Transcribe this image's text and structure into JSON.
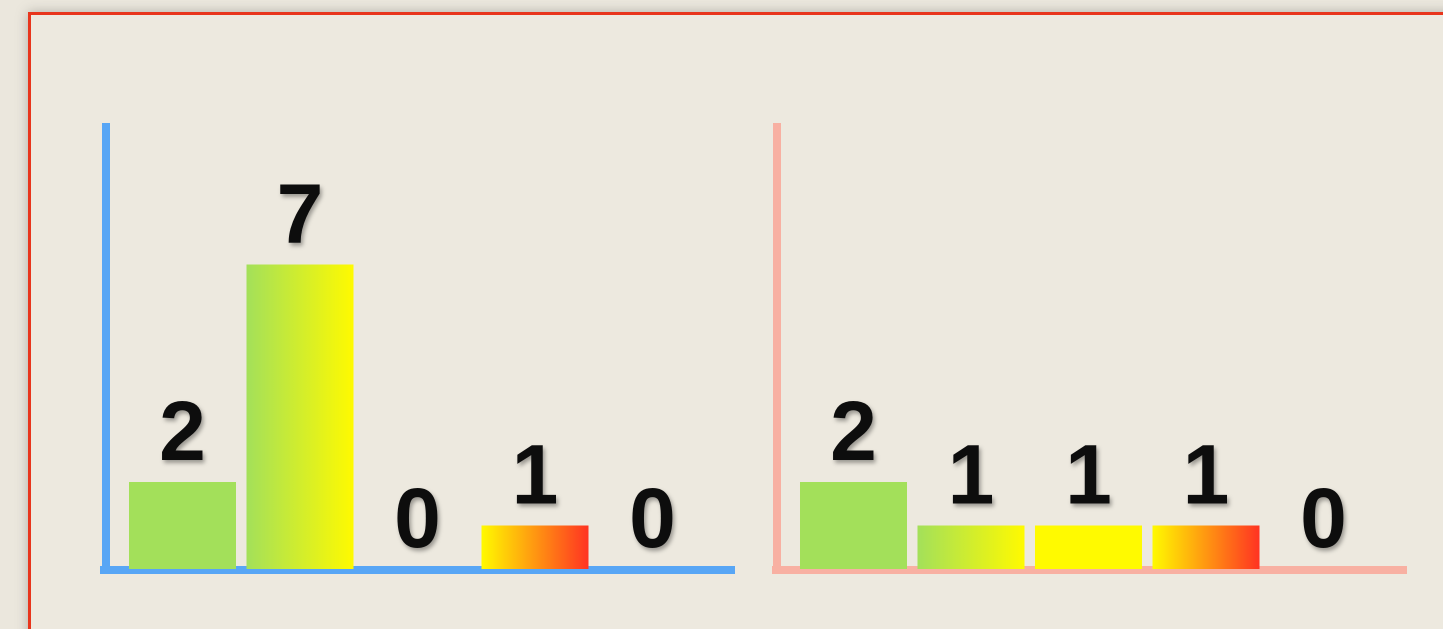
{
  "chart_data": [
    {
      "type": "bar",
      "categories": [
        null,
        null,
        null,
        null,
        null
      ],
      "values": [
        2,
        7,
        0,
        1,
        0
      ],
      "colors": [
        [
          "#a3e05a",
          "#a3e05a"
        ],
        [
          "#a3e05a",
          "#fffa00"
        ],
        null,
        [
          "#fffa00",
          "#ff3322"
        ],
        null
      ],
      "axis_color": "#58a6f5"
    },
    {
      "type": "bar",
      "categories": [
        null,
        null,
        null,
        null,
        null
      ],
      "values": [
        2,
        1,
        1,
        1,
        0
      ],
      "colors": [
        [
          "#a3e05a",
          "#a3e05a"
        ],
        [
          "#a3e05a",
          "#fffa00"
        ],
        [
          "#fffa00",
          "#fffa00"
        ],
        [
          "#fffa00",
          "#ff3322"
        ],
        null
      ],
      "axis_color": "#f8b0a2"
    }
  ]
}
